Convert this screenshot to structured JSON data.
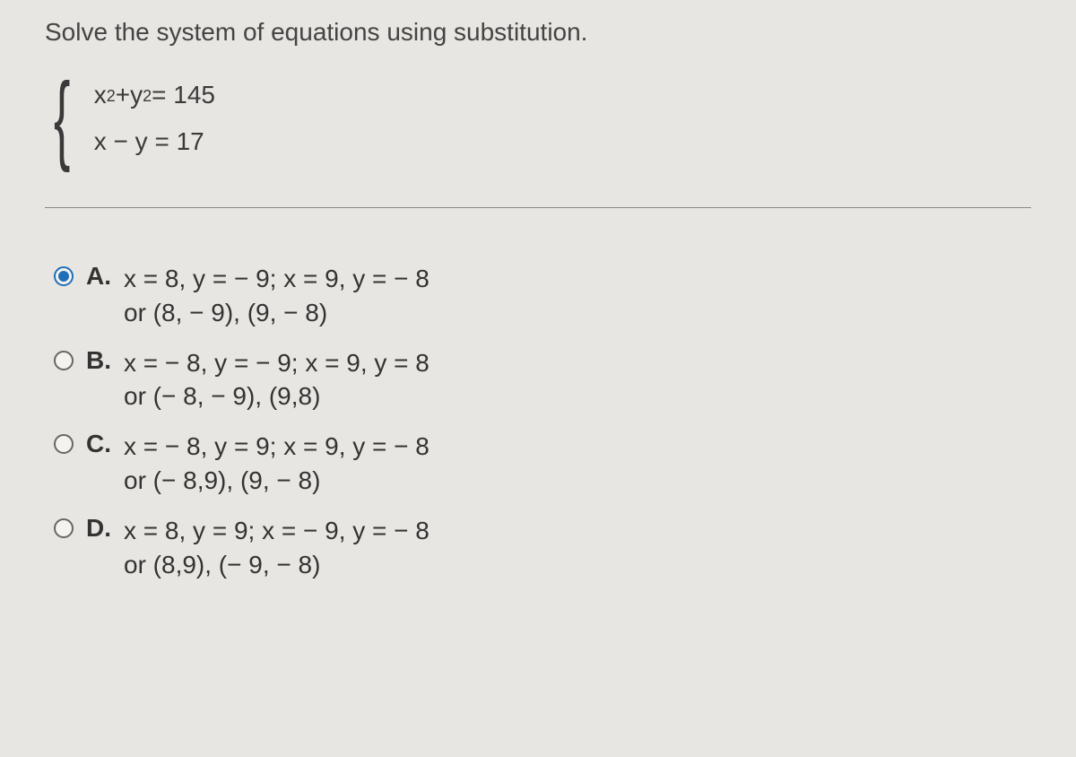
{
  "question": {
    "prompt": "Solve the system of equations using substitution.",
    "eq1_lhs_x": "x",
    "eq1_sup1": "2",
    "eq1_plus": " + ",
    "eq1_lhs_y": "y",
    "eq1_sup2": "2",
    "eq1_rhs": " = 145",
    "eq2": "x − y = 17"
  },
  "selected_index": 0,
  "options": [
    {
      "letter": "A.",
      "line1": "x = 8, y = − 9; x = 9, y = − 8",
      "line2": "or (8, − 9), (9, − 8)"
    },
    {
      "letter": "B.",
      "line1": "x = − 8, y = − 9; x = 9, y = 8",
      "line2": "or (− 8, − 9), (9,8)"
    },
    {
      "letter": "C.",
      "line1": "x = − 8, y = 9; x = 9, y = − 8",
      "line2": "or (− 8,9), (9, − 8)"
    },
    {
      "letter": "D.",
      "line1": "x = 8, y = 9; x = − 9, y = − 8",
      "line2": "or (8,9), (− 9, − 8)"
    }
  ],
  "colors": {
    "background": "#e8e6e2",
    "text": "#3a3a3a",
    "accent": "#1f6fb8",
    "divider": "#888888"
  }
}
